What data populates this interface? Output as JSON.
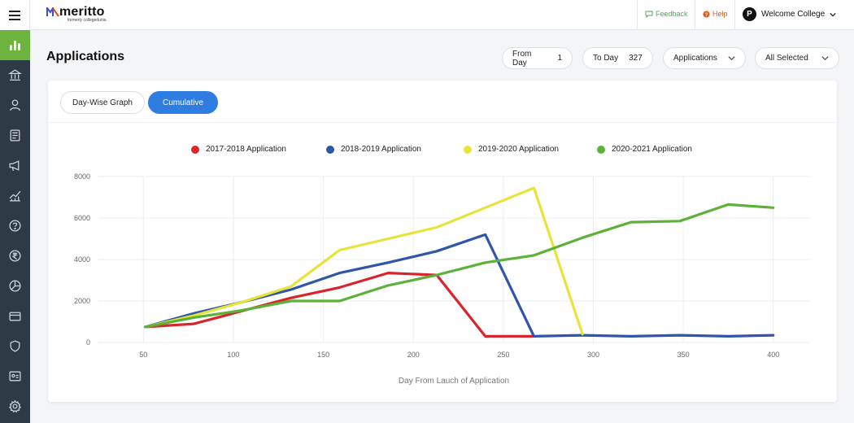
{
  "app": {
    "logo_name": "meritto",
    "logo_subtitle": "formerly collegedunia"
  },
  "topbar": {
    "feedback": "Feedback",
    "help": "Help",
    "college_initial": "P",
    "college_name": "Welcome College"
  },
  "sidebar": {
    "items": [
      {
        "icon": "bar-chart-icon",
        "active": true
      },
      {
        "icon": "institution-icon"
      },
      {
        "icon": "user-icon"
      },
      {
        "icon": "document-icon"
      },
      {
        "icon": "megaphone-icon"
      },
      {
        "icon": "analytics-icon"
      },
      {
        "icon": "question-icon"
      },
      {
        "icon": "rupee-icon"
      },
      {
        "icon": "pie-chart-icon"
      },
      {
        "icon": "card-icon"
      },
      {
        "icon": "shield-icon"
      },
      {
        "icon": "id-card-icon"
      },
      {
        "icon": "settings-icon"
      }
    ]
  },
  "page": {
    "title": "Applications"
  },
  "filters": {
    "from_day_label": "From Day",
    "from_day_value": "1",
    "to_day_label": "To Day",
    "to_day_value": "327",
    "metric_select": "Applications",
    "selection_select": "All Selected"
  },
  "tabs": {
    "daywise": "Day-Wise Graph",
    "cumulative": "Cumulative",
    "active": "cumulative"
  },
  "chart_data": {
    "type": "line",
    "xlabel": "Day From Lauch of Application",
    "ylabel": "",
    "xlim": [
      25,
      420
    ],
    "ylim": [
      0,
      8000
    ],
    "xticks": [
      50,
      100,
      150,
      200,
      250,
      300,
      350,
      400
    ],
    "yticks": [
      0,
      2000,
      4000,
      6000,
      8000
    ],
    "grid": true,
    "legend_position": "top",
    "series": [
      {
        "name": "2017-2018 Application",
        "color": "#d9242b",
        "x": [
          51,
          78,
          132,
          159,
          186,
          213,
          240,
          267
        ],
        "y": [
          750,
          900,
          2150,
          2650,
          3350,
          3250,
          300,
          300
        ]
      },
      {
        "name": "2018-2019 Application",
        "color": "#2f56a8",
        "x": [
          51,
          78,
          105,
          132,
          159,
          186,
          213,
          240,
          267,
          294,
          321,
          348,
          375,
          400
        ],
        "y": [
          750,
          1400,
          1950,
          2550,
          3350,
          3850,
          4400,
          5200,
          300,
          350,
          300,
          350,
          300,
          350
        ]
      },
      {
        "name": "2019-2020 Application",
        "color": "#e6e43a",
        "x": [
          51,
          78,
          105,
          132,
          159,
          186,
          213,
          240,
          267,
          294
        ],
        "y": [
          750,
          1300,
          1950,
          2700,
          4450,
          5000,
          5550,
          6500,
          7450,
          400
        ]
      },
      {
        "name": "2020-2021 Application",
        "color": "#5cb239",
        "x": [
          51,
          78,
          105,
          132,
          159,
          186,
          213,
          240,
          267,
          294,
          321,
          348,
          375,
          400
        ],
        "y": [
          750,
          1200,
          1550,
          2000,
          2000,
          2750,
          3250,
          3850,
          4200,
          5050,
          5800,
          5850,
          6650,
          6500
        ]
      }
    ]
  }
}
